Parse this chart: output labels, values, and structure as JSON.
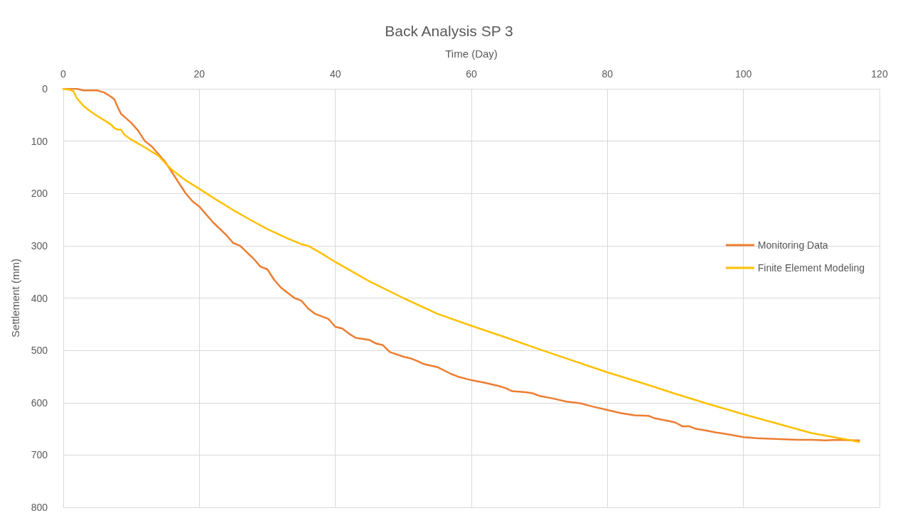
{
  "chart_data": {
    "type": "line",
    "title": "Back Analysis SP 3",
    "xlabel": "Time (Day)",
    "ylabel": "Settlement (mm)",
    "xlim": [
      0,
      120
    ],
    "xticks": [
      0,
      20,
      40,
      60,
      80,
      100,
      120
    ],
    "ylim": [
      800,
      0
    ],
    "yticks": [
      0,
      100,
      200,
      300,
      400,
      500,
      600,
      700,
      800
    ],
    "grid": true,
    "legend": "right",
    "marker": "none",
    "series": [
      {
        "name": "Monitoring Data",
        "color": "#ed7d31",
        "x": [
          0,
          2,
          3,
          5,
          6,
          7,
          7.5,
          8,
          8.5,
          10,
          11,
          12,
          13,
          14,
          15,
          16,
          17,
          18,
          19,
          20,
          22,
          24,
          25,
          26,
          28,
          29,
          30,
          31,
          32,
          33,
          34,
          35,
          36,
          37,
          39,
          40,
          41,
          42,
          43,
          45,
          46,
          47,
          48,
          50,
          51,
          52,
          53,
          55,
          57,
          58,
          60,
          62,
          64,
          65,
          66,
          68,
          69,
          70,
          72,
          74,
          76,
          78,
          80,
          82,
          84,
          86,
          87,
          89,
          90,
          91,
          92,
          93,
          94,
          96,
          98,
          100,
          102,
          104,
          106,
          108,
          110,
          112,
          114,
          116,
          117
        ],
        "values": [
          0,
          0,
          3,
          3,
          7,
          15,
          20,
          35,
          48,
          65,
          80,
          100,
          110,
          125,
          140,
          160,
          180,
          200,
          215,
          225,
          255,
          280,
          295,
          300,
          325,
          340,
          345,
          365,
          380,
          390,
          400,
          405,
          420,
          430,
          440,
          455,
          458,
          468,
          476,
          480,
          487,
          490,
          503,
          512,
          515,
          520,
          526,
          532,
          545,
          550,
          557,
          562,
          568,
          572,
          578,
          580,
          582,
          587,
          592,
          598,
          601,
          608,
          614,
          620,
          624,
          625,
          630,
          635,
          638,
          645,
          645,
          650,
          652,
          657,
          661,
          666,
          668,
          669,
          670,
          671,
          671,
          672,
          671,
          672,
          672
        ]
      },
      {
        "name": "Finite Element Modeling",
        "color": "#ffc000",
        "x": [
          0,
          1,
          1.5,
          2,
          3,
          4,
          5,
          6,
          7,
          7.5,
          8,
          8.5,
          9,
          10,
          12,
          13,
          14,
          15,
          16,
          18,
          20,
          22,
          25,
          28,
          30,
          33,
          35,
          36,
          38,
          40,
          45,
          50,
          55,
          60,
          65,
          70,
          75,
          80,
          85,
          90,
          95,
          100,
          105,
          110,
          115,
          117
        ],
        "values": [
          0,
          2,
          5,
          18,
          33,
          43,
          52,
          60,
          68,
          75,
          78,
          78,
          88,
          97,
          112,
          120,
          128,
          142,
          155,
          175,
          191,
          208,
          232,
          254,
          268,
          286,
          297,
          300,
          315,
          331,
          368,
          400,
          430,
          453,
          475,
          498,
          520,
          542,
          562,
          583,
          603,
          622,
          640,
          658,
          670,
          675
        ]
      }
    ]
  }
}
